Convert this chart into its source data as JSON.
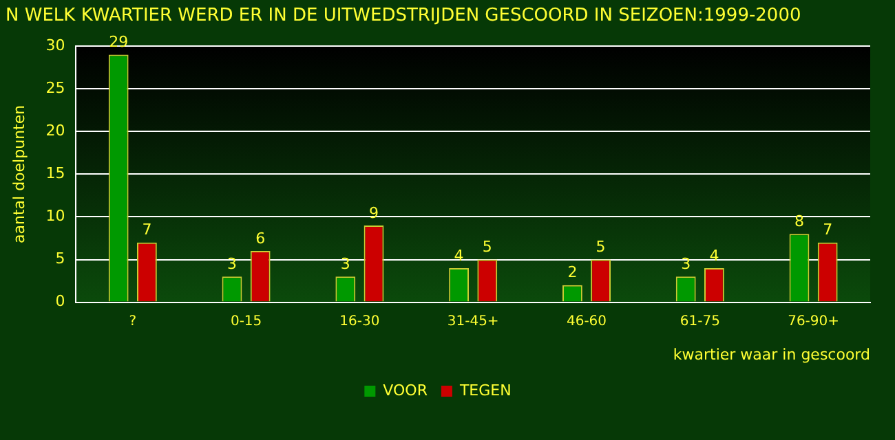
{
  "chart_data": {
    "type": "bar",
    "title": "N WELK KWARTIER WERD ER IN DE UITWEDSTRIJDEN GESCOORD IN SEIZOEN:1999-2000",
    "xlabel": "kwartier waar in gescoord",
    "ylabel": "aantal doelpunten",
    "categories": [
      "?",
      "0-15",
      "16-30",
      "31-45+",
      "46-60",
      "61-75",
      "76-90+"
    ],
    "series": [
      {
        "name": "VOOR",
        "color": "#009900",
        "values": [
          29,
          3,
          3,
          4,
          2,
          3,
          8
        ]
      },
      {
        "name": "TEGEN",
        "color": "#cc0000",
        "values": [
          7,
          6,
          9,
          5,
          5,
          4,
          7
        ]
      }
    ],
    "ylim": [
      0,
      30
    ],
    "yticks": [
      0,
      5,
      10,
      15,
      20,
      25,
      30
    ],
    "grid": "y",
    "legend": "bottom",
    "data_labels": true
  }
}
